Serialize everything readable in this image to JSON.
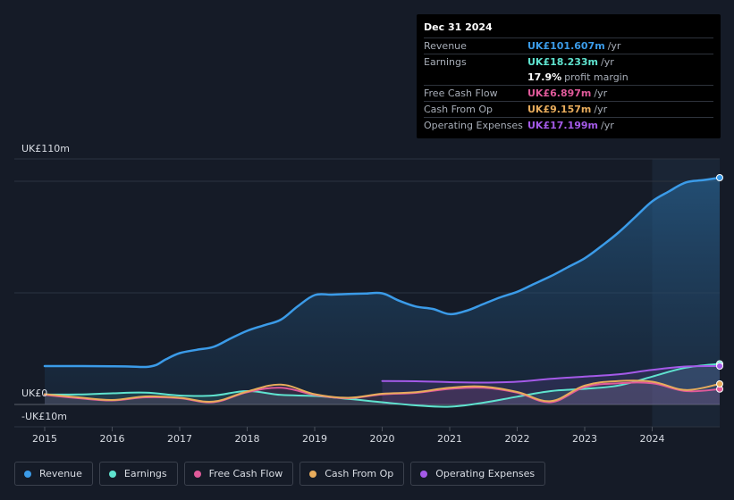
{
  "tooltip": {
    "date": "Dec 31 2024",
    "rows": [
      {
        "label": "Revenue",
        "value": "UK£101.607m",
        "unit": "/yr",
        "color": "#3b9be8"
      },
      {
        "label": "Earnings",
        "value": "UK£18.233m",
        "unit": "/yr",
        "color": "#5fe3cf"
      },
      {
        "label": "",
        "value": "17.9%",
        "unit": "profit margin",
        "color": "#ffffff"
      },
      {
        "label": "Free Cash Flow",
        "value": "UK£6.897m",
        "unit": "/yr",
        "color": "#e05a9a"
      },
      {
        "label": "Cash From Op",
        "value": "UK£9.157m",
        "unit": "/yr",
        "color": "#e8ac5c"
      },
      {
        "label": "Operating Expenses",
        "value": "UK£17.199m",
        "unit": "/yr",
        "color": "#a45ae8"
      }
    ]
  },
  "axis": {
    "y_top_label": "UK£110m",
    "y_zero_label": "UK£0",
    "y_neg_label": "-UK£10m"
  },
  "legend": [
    {
      "label": "Revenue",
      "color": "#3b9be8"
    },
    {
      "label": "Earnings",
      "color": "#5fe3cf"
    },
    {
      "label": "Free Cash Flow",
      "color": "#e05a9a"
    },
    {
      "label": "Cash From Op",
      "color": "#e8ac5c"
    },
    {
      "label": "Operating Expenses",
      "color": "#a45ae8"
    }
  ],
  "chart_data": {
    "type": "area",
    "title": "",
    "xlabel": "",
    "ylabel": "",
    "x_ticks": [
      2015,
      2016,
      2017,
      2018,
      2019,
      2020,
      2021,
      2022,
      2023,
      2024
    ],
    "x_range": [
      2014.55,
      2025.0
    ],
    "ylim": [
      -10,
      110
    ],
    "y_gridlines": [
      0,
      50,
      100
    ],
    "highlight_from": 2024.0,
    "series": [
      {
        "name": "Revenue",
        "color": "#3b9be8",
        "fill": true,
        "x": [
          2015.0,
          2015.5,
          2016.0,
          2016.25,
          2016.5,
          2016.65,
          2016.8,
          2017.0,
          2017.25,
          2017.5,
          2017.75,
          2018.0,
          2018.25,
          2018.5,
          2018.75,
          2019.0,
          2019.25,
          2019.5,
          2019.75,
          2020.0,
          2020.25,
          2020.5,
          2020.75,
          2021.0,
          2021.25,
          2021.5,
          2021.75,
          2022.0,
          2022.25,
          2022.5,
          2022.75,
          2023.0,
          2023.25,
          2023.5,
          2023.75,
          2024.0,
          2024.25,
          2024.5,
          2024.75,
          2025.0
        ],
        "values": [
          17.2,
          17.2,
          17.1,
          17.0,
          16.8,
          17.7,
          20.3,
          23.0,
          24.5,
          25.8,
          29.5,
          33.0,
          35.5,
          38.0,
          44.0,
          49.0,
          49.2,
          49.5,
          49.7,
          49.8,
          46.5,
          43.9,
          42.8,
          40.5,
          42.0,
          45.0,
          48.0,
          50.5,
          54.0,
          57.5,
          61.5,
          65.5,
          71.0,
          77.0,
          84.0,
          91.0,
          95.5,
          99.5,
          100.5,
          101.6
        ]
      },
      {
        "name": "Earnings",
        "color": "#5fe3cf",
        "fill": true,
        "x": [
          2015.0,
          2015.5,
          2016.0,
          2016.5,
          2017.0,
          2017.5,
          2018.0,
          2018.5,
          2019.0,
          2019.5,
          2020.0,
          2020.5,
          2021.0,
          2021.5,
          2022.0,
          2022.5,
          2023.0,
          2023.5,
          2024.0,
          2024.5,
          2025.0
        ],
        "values": [
          4.5,
          4.5,
          5.0,
          5.3,
          4.0,
          4.0,
          6.0,
          4.3,
          3.8,
          2.5,
          1.0,
          -0.4,
          -1.0,
          0.8,
          3.5,
          6.0,
          7.0,
          8.5,
          12.5,
          16.5,
          18.2
        ]
      },
      {
        "name": "Free Cash Flow",
        "color": "#e05a9a",
        "fill": true,
        "x": [
          2015.0,
          2015.5,
          2016.0,
          2016.5,
          2017.0,
          2017.5,
          2018.0,
          2018.5,
          2019.0,
          2019.5,
          2020.0,
          2020.5,
          2021.0,
          2021.5,
          2022.0,
          2022.5,
          2023.0,
          2023.5,
          2024.0,
          2024.5,
          2025.0
        ],
        "values": [
          4.3,
          2.8,
          1.8,
          3.2,
          2.8,
          1.0,
          5.5,
          7.5,
          4.3,
          2.8,
          4.5,
          5.2,
          7.0,
          7.5,
          5.3,
          1.0,
          7.8,
          9.5,
          9.5,
          6.0,
          6.9
        ]
      },
      {
        "name": "Cash From Op",
        "color": "#e8ac5c",
        "fill": false,
        "x": [
          2015.0,
          2015.5,
          2016.0,
          2016.5,
          2017.0,
          2017.5,
          2018.0,
          2018.5,
          2019.0,
          2019.5,
          2020.0,
          2020.5,
          2021.0,
          2021.5,
          2022.0,
          2022.5,
          2023.0,
          2023.5,
          2024.0,
          2024.5,
          2025.0
        ],
        "values": [
          4.6,
          3.2,
          2.0,
          3.6,
          3.0,
          1.3,
          5.8,
          8.9,
          4.6,
          3.0,
          4.8,
          5.5,
          7.5,
          8.0,
          5.6,
          1.5,
          8.5,
          10.5,
          10.2,
          6.5,
          9.2
        ]
      },
      {
        "name": "Operating Expenses",
        "color": "#a45ae8",
        "fill": true,
        "x": [
          2020.0,
          2020.5,
          2021.0,
          2021.5,
          2022.0,
          2022.5,
          2023.0,
          2023.5,
          2024.0,
          2024.5,
          2025.0
        ],
        "values": [
          10.5,
          10.4,
          10.0,
          9.8,
          10.2,
          11.5,
          12.5,
          13.5,
          15.5,
          17.0,
          17.2
        ]
      }
    ]
  }
}
